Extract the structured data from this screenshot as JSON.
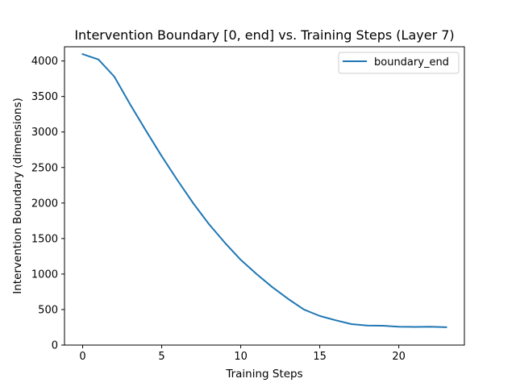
{
  "chart_data": {
    "type": "line",
    "title": "Intervention Boundary [0, end] vs. Training Steps (Layer 7)",
    "xlabel": "Training Steps",
    "ylabel": "Intervention Boundary (dimensions)",
    "xlim": [
      -1.15,
      24.15
    ],
    "ylim": [
      0,
      4200
    ],
    "xticks": [
      0,
      5,
      10,
      15,
      20
    ],
    "yticks": [
      0,
      500,
      1000,
      1500,
      2000,
      2500,
      3000,
      3500,
      4000
    ],
    "grid": false,
    "legend_position": "top-right",
    "series": [
      {
        "name": "boundary_end",
        "color": "#1f77b4",
        "x": [
          0,
          1,
          2,
          3,
          4,
          5,
          6,
          7,
          8,
          9,
          10,
          11,
          12,
          13,
          14,
          15,
          16,
          17,
          18,
          19,
          20,
          21,
          22,
          23
        ],
        "y": [
          4096,
          4020,
          3780,
          3390,
          3020,
          2660,
          2320,
          1995,
          1700,
          1440,
          1200,
          1000,
          815,
          650,
          500,
          410,
          350,
          295,
          275,
          272,
          258,
          256,
          258,
          252
        ]
      }
    ]
  }
}
